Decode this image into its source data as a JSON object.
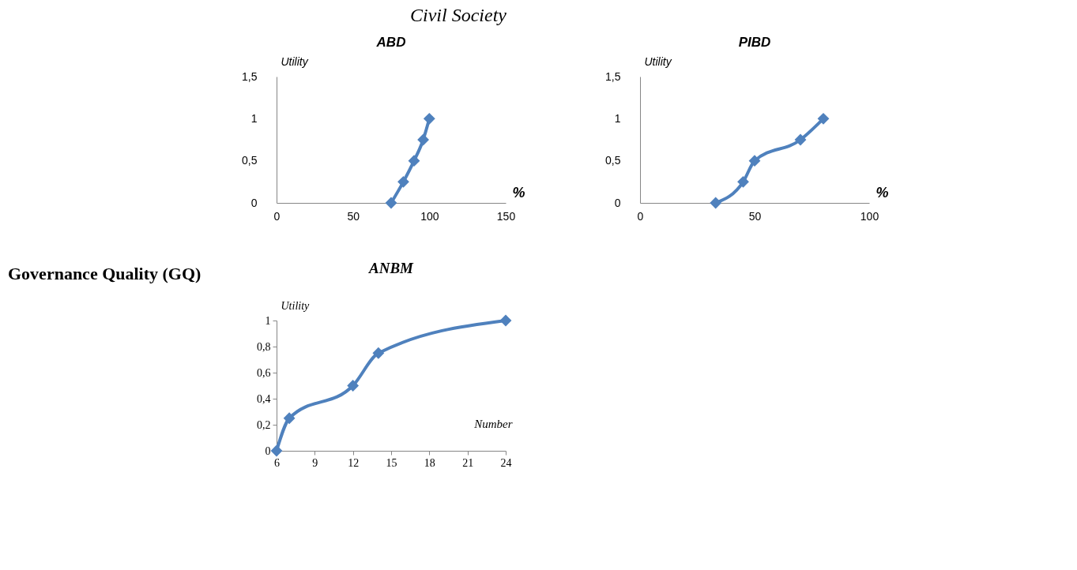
{
  "chart_data": [
    {
      "type": "line",
      "title": "ABD",
      "xlabel": "%",
      "ylabel": "Utility",
      "x": [
        75,
        83,
        90,
        96,
        100
      ],
      "series": [
        {
          "color": "#4f81bd",
          "values": [
            0,
            0.25,
            0.5,
            0.75,
            1
          ]
        }
      ],
      "xlim": [
        0,
        150
      ],
      "xticks": [
        0,
        50,
        100,
        150
      ],
      "ylim": [
        0,
        1.5
      ],
      "yticks": [
        0,
        {
          "value": 0.5,
          "label": "0,5"
        },
        1,
        {
          "value": 1.5,
          "label": "1,5"
        }
      ],
      "marker": "diamond",
      "grid": false,
      "annotations": [
        "Civil Society",
        "Governance Quality (GQ)"
      ]
    },
    {
      "type": "line",
      "title": "PIBD",
      "xlabel": "%",
      "ylabel": "Utility",
      "x": [
        33,
        45,
        50,
        70,
        80
      ],
      "series": [
        {
          "color": "#4f81bd",
          "values": [
            0,
            0.25,
            0.5,
            0.75,
            1
          ]
        }
      ],
      "xlim": [
        0,
        100
      ],
      "xticks": [
        0,
        50,
        100
      ],
      "ylim": [
        0,
        1.5
      ],
      "yticks": [
        0,
        {
          "value": 0.5,
          "label": "0,5"
        },
        1,
        {
          "value": 1.5,
          "label": "1,5"
        }
      ],
      "marker": "diamond",
      "grid": false
    },
    {
      "type": "line",
      "title": "ANBM",
      "xlabel": "Number",
      "ylabel": "Utility",
      "x": [
        6,
        7,
        12,
        14,
        24
      ],
      "series": [
        {
          "color": "#4f81bd",
          "values": [
            0,
            0.25,
            0.5,
            0.75,
            1
          ]
        }
      ],
      "xlim": [
        6,
        24
      ],
      "xticks": [
        6,
        9,
        12,
        15,
        18,
        21,
        24
      ],
      "ylim": [
        0,
        1
      ],
      "yticks": [
        0,
        {
          "value": 0.2,
          "label": "0,2"
        },
        {
          "value": 0.4,
          "label": "0,4"
        },
        {
          "value": 0.6,
          "label": "0,6"
        },
        {
          "value": 0.8,
          "label": "0,8"
        },
        1
      ],
      "marker": "diamond",
      "grid": false
    }
  ]
}
